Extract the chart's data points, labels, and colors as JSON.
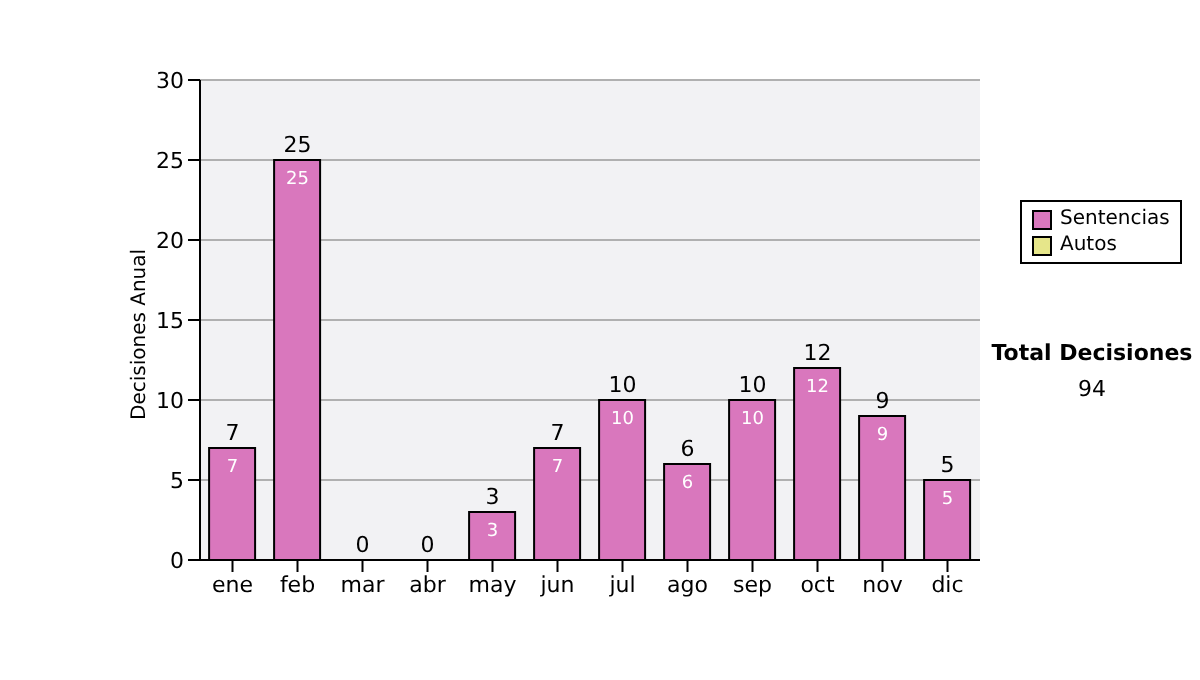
{
  "chart_data": {
    "type": "bar",
    "stacked": true,
    "ylabel": "Decisiones Anual",
    "categories": [
      "ene",
      "feb",
      "mar",
      "abr",
      "may",
      "jun",
      "jul",
      "ago",
      "sep",
      "oct",
      "nov",
      "dic"
    ],
    "series": [
      {
        "name": "Sentencias",
        "color": "#d977bd",
        "values": [
          7,
          25,
          0,
          0,
          3,
          7,
          10,
          6,
          10,
          12,
          9,
          5
        ],
        "value_labels": [
          "7",
          "25",
          null,
          null,
          "3",
          "7",
          "10",
          "6",
          "10",
          "12",
          "9",
          "5"
        ]
      },
      {
        "name": "Autos",
        "color": "#e6e68a",
        "values": [
          0,
          0,
          0,
          0,
          0,
          0,
          0,
          0,
          0,
          0,
          0,
          0
        ]
      }
    ],
    "totals": [
      "7",
      "25",
      "0",
      "0",
      "3",
      "7",
      "10",
      "6",
      "10",
      "12",
      "9",
      "5"
    ],
    "ylim": [
      0,
      30
    ],
    "yticks": [
      0,
      5,
      10,
      15,
      20,
      25,
      30
    ],
    "grid": "y",
    "legend": "right",
    "annotations": [
      "Total Decisiones",
      "94"
    ]
  }
}
